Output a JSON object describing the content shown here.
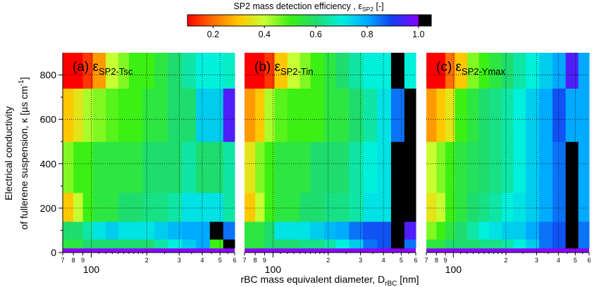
{
  "colorbar": {
    "title_main": "SP2 mass detection efficiency , ε",
    "title_sub": "SP2",
    "title_unit": " [-]",
    "ticks": [
      "0.2",
      "0.4",
      "0.6",
      "0.8",
      "1.0"
    ],
    "range": [
      0.1,
      1.05
    ],
    "over_color": "#000000"
  },
  "y_axis": {
    "label_line1": "Electrical conductivity",
    "label_line2_pre": "of fullerene suspension, κ  [µs cm",
    "label_line2_sup": "-1",
    "label_line2_post": "]",
    "ticks": [
      "0",
      "200",
      "400",
      "600",
      "800"
    ]
  },
  "x_axis": {
    "label_pre": "rBC mass equivalent diameter, D",
    "label_sub": "rBC",
    "label_post": " [nm]",
    "major_label": "100",
    "minor_labels_panel_a": [
      "7",
      "8",
      "9",
      "2",
      "3",
      "4",
      "5",
      "6"
    ],
    "minor_labels_small": [
      "7",
      "8",
      "9",
      "2",
      "3",
      "4",
      "5",
      "6"
    ]
  },
  "chart_data": {
    "type": "heatmap",
    "x_scale": "log",
    "x_unit": "nm",
    "xlim": [
      70,
      600
    ],
    "ylim": [
      0,
      900
    ],
    "x_edges": [
      70,
      80,
      90,
      102,
      120,
      140,
      160,
      190,
      220,
      260,
      310,
      370,
      440,
      520,
      600
    ],
    "y_edges": [
      20,
      60,
      140,
      270,
      500,
      740,
      900
    ],
    "panels": [
      {
        "label": "(a) ε",
        "label_sub": "SP2-Tsc",
        "values": [
          [
            0.55,
            0.55,
            0.6,
            0.6,
            0.6,
            0.6,
            0.6,
            0.6,
            0.65,
            0.7,
            0.75,
            0.8,
            0.5,
            1.2
          ],
          [
            0.6,
            0.6,
            0.65,
            0.72,
            0.75,
            0.72,
            0.72,
            0.72,
            0.75,
            0.78,
            0.8,
            0.8,
            1.2,
            0.85
          ],
          [
            0.3,
            0.4,
            0.5,
            0.55,
            0.55,
            0.6,
            0.6,
            0.62,
            0.62,
            0.65,
            0.72,
            0.72,
            0.72,
            0.65
          ],
          [
            0.45,
            0.5,
            0.5,
            0.55,
            0.55,
            0.55,
            0.55,
            0.6,
            0.6,
            0.6,
            0.65,
            0.6,
            0.6,
            0.65
          ],
          [
            0.3,
            0.35,
            0.42,
            0.45,
            0.48,
            0.5,
            0.5,
            0.55,
            0.55,
            0.6,
            0.6,
            0.75,
            0.75,
            0.95
          ],
          [
            0.1,
            0.1,
            0.15,
            0.25,
            0.4,
            0.45,
            0.5,
            0.5,
            0.55,
            0.6,
            0.65,
            0.7,
            0.7,
            0.68
          ]
        ]
      },
      {
        "label": "(b) ε",
        "label_sub": "SP2-Tin",
        "values": [
          [
            0.55,
            0.55,
            0.6,
            0.6,
            0.6,
            0.62,
            0.62,
            0.65,
            0.7,
            0.75,
            0.85,
            0.88,
            1.2,
            0.85
          ],
          [
            0.55,
            0.55,
            0.6,
            0.72,
            0.72,
            0.72,
            0.75,
            0.78,
            0.8,
            0.85,
            0.88,
            0.88,
            1.2,
            0.95
          ],
          [
            0.3,
            0.4,
            0.5,
            0.55,
            0.55,
            0.6,
            0.6,
            0.62,
            0.62,
            0.65,
            0.72,
            0.72,
            1.2,
            1.2
          ],
          [
            0.35,
            0.45,
            0.5,
            0.55,
            0.55,
            0.55,
            0.6,
            0.6,
            0.6,
            0.65,
            0.7,
            0.72,
            1.2,
            1.2
          ],
          [
            0.25,
            0.3,
            0.42,
            0.48,
            0.5,
            0.5,
            0.5,
            0.55,
            0.55,
            0.6,
            0.65,
            0.72,
            0.85,
            1.2
          ],
          [
            0.1,
            0.1,
            0.15,
            0.3,
            0.4,
            0.45,
            0.5,
            0.55,
            0.6,
            0.65,
            0.7,
            0.7,
            1.2,
            0.7
          ]
        ]
      },
      {
        "label": "(c) ε",
        "label_sub": "SP2-Ymax",
        "values": [
          [
            0.55,
            0.55,
            0.6,
            0.6,
            0.6,
            0.62,
            0.62,
            0.65,
            0.7,
            0.75,
            0.85,
            0.88,
            1.2,
            0.85
          ],
          [
            0.45,
            0.5,
            0.55,
            0.6,
            0.65,
            0.7,
            0.72,
            0.75,
            0.75,
            0.8,
            0.85,
            0.88,
            1.2,
            0.85
          ],
          [
            0.35,
            0.4,
            0.5,
            0.55,
            0.6,
            0.62,
            0.65,
            0.7,
            0.72,
            0.75,
            0.8,
            0.85,
            1.2,
            0.8
          ],
          [
            0.4,
            0.45,
            0.5,
            0.55,
            0.58,
            0.6,
            0.62,
            0.65,
            0.7,
            0.75,
            0.8,
            0.85,
            1.2,
            0.8
          ],
          [
            0.25,
            0.3,
            0.35,
            0.5,
            0.55,
            0.6,
            0.62,
            0.65,
            0.7,
            0.75,
            0.8,
            0.88,
            0.8,
            0.8
          ],
          [
            0.1,
            0.1,
            0.2,
            0.3,
            0.45,
            0.5,
            0.55,
            0.6,
            0.65,
            0.7,
            0.75,
            0.8,
            0.95,
            0.8
          ]
        ]
      }
    ],
    "bottom_strip_value": 1.0
  }
}
